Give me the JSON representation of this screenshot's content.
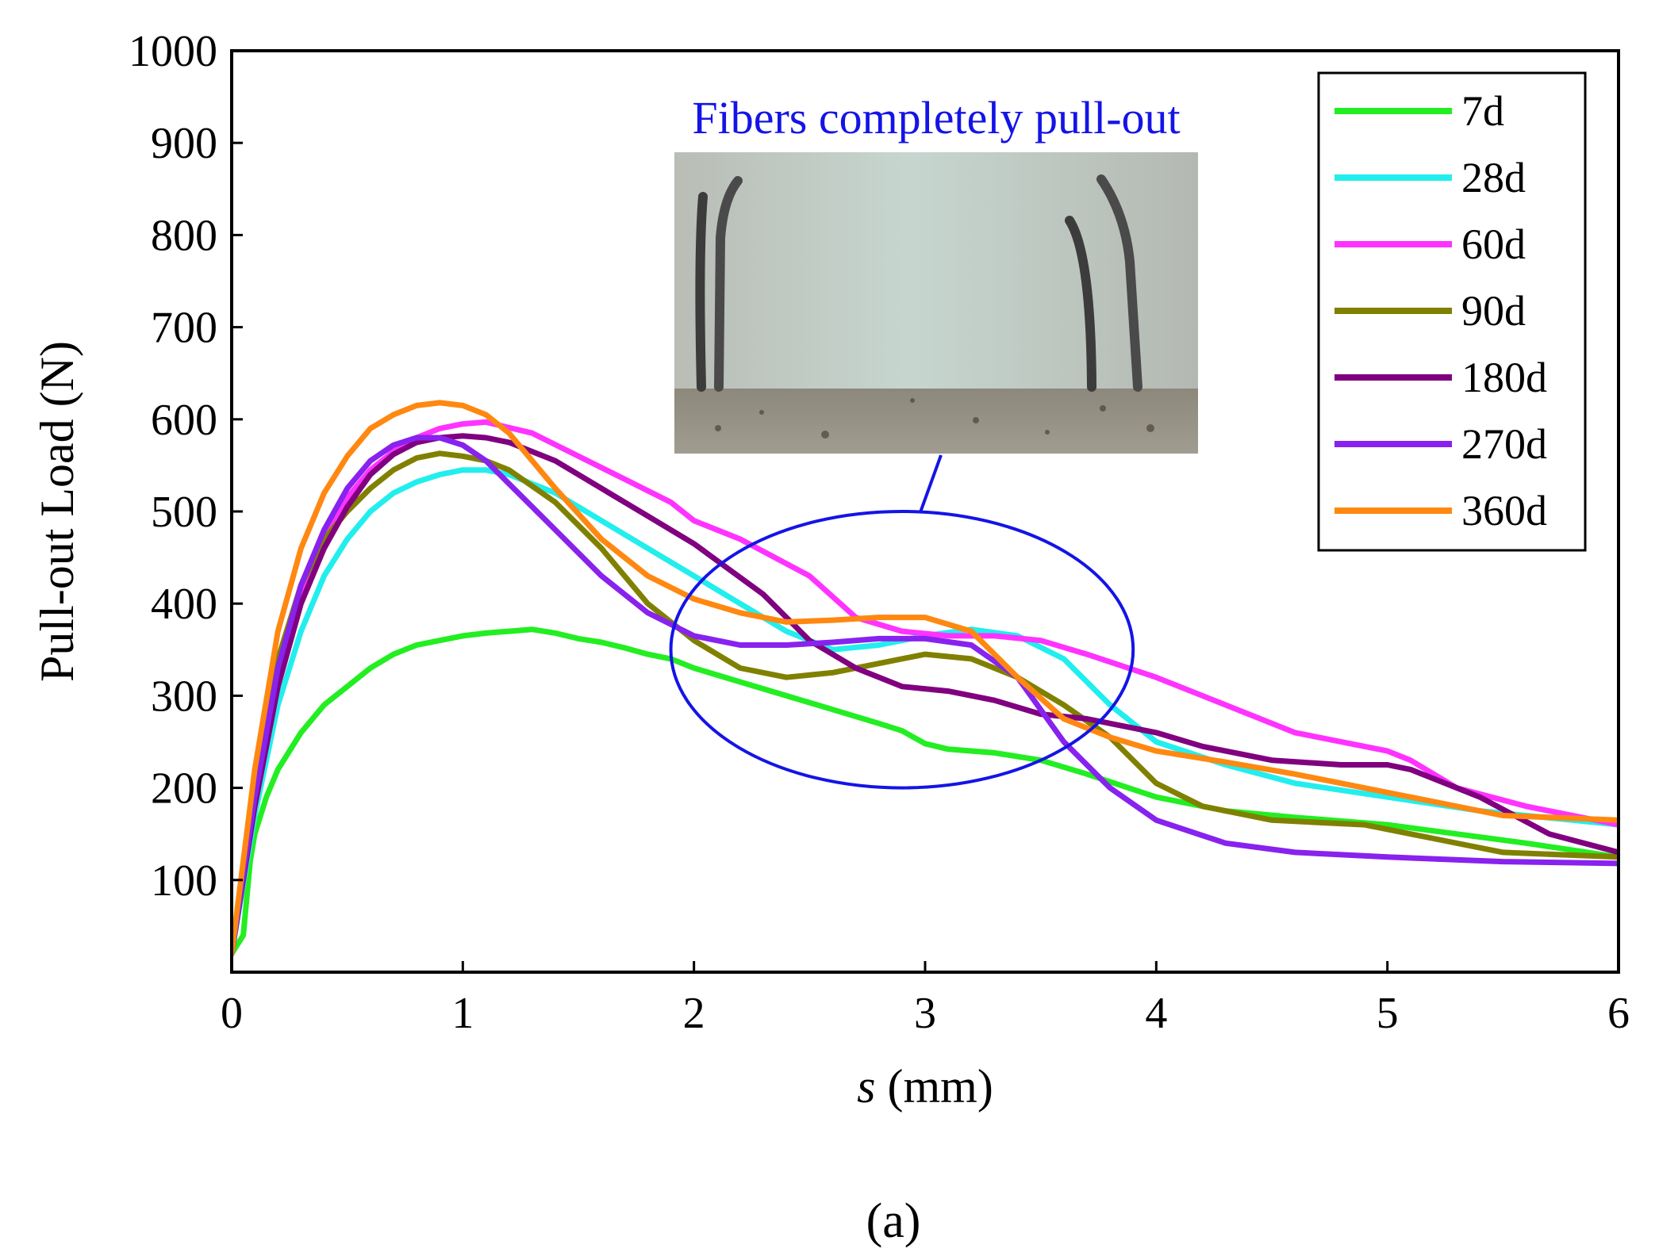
{
  "chart_data": {
    "type": "line",
    "title": "",
    "xlabel_var": "s",
    "xlabel_unit": " (mm)",
    "ylabel": "Pull-out Load (N)",
    "xlim": [
      0,
      6
    ],
    "ylim": [
      0,
      1000
    ],
    "xticks": [
      "0",
      "1",
      "2",
      "3",
      "4",
      "5",
      "6"
    ],
    "yticks": [
      "100",
      "200",
      "300",
      "400",
      "500",
      "600",
      "700",
      "800",
      "900",
      "1000"
    ],
    "legend_position": "top-right",
    "annotation": "Fibers completely pull-out",
    "annotation_ellipse_center": [
      2.9,
      350
    ],
    "annotation_ellipse_radii": [
      1.0,
      150
    ],
    "photo_description_icon": "photo-icon",
    "series": [
      {
        "name": "7d",
        "color": "#22ee22",
        "x": [
          0,
          0.05,
          0.08,
          0.1,
          0.15,
          0.2,
          0.3,
          0.4,
          0.5,
          0.6,
          0.7,
          0.8,
          0.9,
          1.0,
          1.1,
          1.2,
          1.3,
          1.4,
          1.5,
          1.6,
          1.7,
          1.8,
          1.9,
          2.0,
          2.2,
          2.4,
          2.6,
          2.8,
          2.9,
          3.0,
          3.1,
          3.3,
          3.5,
          3.7,
          4.0,
          4.3,
          4.6,
          5.0,
          5.3,
          5.6,
          6.0
        ],
        "y": [
          20,
          40,
          120,
          150,
          190,
          220,
          260,
          290,
          310,
          330,
          345,
          355,
          360,
          365,
          368,
          370,
          372,
          368,
          362,
          358,
          352,
          345,
          340,
          330,
          315,
          300,
          285,
          270,
          262,
          248,
          242,
          238,
          230,
          215,
          190,
          175,
          168,
          160,
          150,
          140,
          125
        ]
      },
      {
        "name": "28d",
        "color": "#22eeee",
        "x": [
          0,
          0.1,
          0.2,
          0.3,
          0.4,
          0.5,
          0.6,
          0.7,
          0.8,
          0.9,
          1.0,
          1.1,
          1.2,
          1.4,
          1.6,
          1.8,
          2.0,
          2.2,
          2.4,
          2.6,
          2.8,
          3.0,
          3.2,
          3.4,
          3.6,
          3.8,
          4.0,
          4.3,
          4.6,
          5.0,
          5.4,
          5.8,
          6.0
        ],
        "y": [
          20,
          170,
          290,
          370,
          430,
          470,
          500,
          520,
          532,
          540,
          545,
          545,
          540,
          520,
          490,
          460,
          430,
          400,
          370,
          350,
          355,
          365,
          372,
          365,
          340,
          290,
          250,
          225,
          205,
          190,
          175,
          165,
          160
        ]
      },
      {
        "name": "60d",
        "color": "#ff33ff",
        "x": [
          0,
          0.1,
          0.2,
          0.3,
          0.4,
          0.5,
          0.6,
          0.7,
          0.8,
          0.9,
          1.0,
          1.1,
          1.3,
          1.5,
          1.7,
          1.9,
          2.0,
          2.2,
          2.5,
          2.7,
          2.9,
          3.1,
          3.3,
          3.5,
          3.7,
          4.0,
          4.3,
          4.6,
          5.0,
          5.1,
          5.3,
          5.6,
          6.0
        ],
        "y": [
          20,
          200,
          330,
          410,
          470,
          515,
          545,
          565,
          580,
          590,
          595,
          597,
          585,
          560,
          535,
          510,
          490,
          470,
          430,
          385,
          370,
          365,
          365,
          360,
          345,
          320,
          290,
          260,
          240,
          230,
          200,
          180,
          160
        ]
      },
      {
        "name": "90d",
        "color": "#808000",
        "x": [
          0,
          0.1,
          0.2,
          0.3,
          0.4,
          0.5,
          0.6,
          0.7,
          0.8,
          0.9,
          1.0,
          1.1,
          1.2,
          1.4,
          1.6,
          1.8,
          2.0,
          2.2,
          2.4,
          2.6,
          2.8,
          3.0,
          3.2,
          3.4,
          3.6,
          3.8,
          4.0,
          4.2,
          4.5,
          4.9,
          5.2,
          5.5,
          6.0
        ],
        "y": [
          20,
          210,
          340,
          420,
          470,
          500,
          525,
          545,
          558,
          563,
          560,
          555,
          545,
          510,
          460,
          400,
          360,
          330,
          320,
          325,
          335,
          345,
          340,
          320,
          290,
          255,
          205,
          180,
          165,
          160,
          145,
          130,
          125
        ]
      },
      {
        "name": "180d",
        "color": "#800080",
        "x": [
          0,
          0.1,
          0.2,
          0.3,
          0.4,
          0.5,
          0.6,
          0.7,
          0.8,
          0.9,
          1.0,
          1.1,
          1.2,
          1.4,
          1.6,
          1.8,
          2.0,
          2.3,
          2.5,
          2.7,
          2.9,
          3.1,
          3.3,
          3.5,
          3.7,
          4.0,
          4.2,
          4.5,
          4.8,
          5.0,
          5.1,
          5.4,
          5.7,
          6.0
        ],
        "y": [
          20,
          180,
          310,
          400,
          460,
          505,
          540,
          562,
          575,
          580,
          582,
          580,
          575,
          555,
          525,
          495,
          465,
          410,
          360,
          330,
          310,
          305,
          295,
          280,
          275,
          260,
          245,
          230,
          225,
          225,
          220,
          190,
          150,
          130
        ]
      },
      {
        "name": "270d",
        "color": "#8822ee",
        "x": [
          0,
          0.1,
          0.2,
          0.3,
          0.4,
          0.5,
          0.6,
          0.7,
          0.8,
          0.9,
          1.0,
          1.1,
          1.2,
          1.4,
          1.6,
          1.8,
          2.0,
          2.2,
          2.4,
          2.6,
          2.8,
          3.0,
          3.2,
          3.4,
          3.6,
          3.8,
          4.0,
          4.3,
          4.6,
          5.0,
          5.5,
          6.0
        ],
        "y": [
          20,
          190,
          330,
          420,
          480,
          525,
          555,
          572,
          580,
          580,
          572,
          555,
          530,
          480,
          430,
          390,
          365,
          355,
          355,
          358,
          362,
          362,
          355,
          320,
          250,
          200,
          165,
          140,
          130,
          125,
          120,
          118
        ]
      },
      {
        "name": "360d",
        "color": "#ff8811",
        "x": [
          0,
          0.1,
          0.2,
          0.3,
          0.4,
          0.5,
          0.6,
          0.7,
          0.8,
          0.9,
          1.0,
          1.1,
          1.2,
          1.4,
          1.6,
          1.8,
          2.0,
          2.2,
          2.4,
          2.6,
          2.8,
          3.0,
          3.2,
          3.4,
          3.6,
          3.8,
          4.0,
          4.3,
          4.6,
          5.0,
          5.5,
          6.0
        ],
        "y": [
          20,
          220,
          370,
          460,
          520,
          560,
          590,
          605,
          615,
          618,
          615,
          605,
          585,
          525,
          470,
          430,
          405,
          390,
          380,
          382,
          385,
          385,
          370,
          320,
          275,
          255,
          240,
          228,
          215,
          195,
          170,
          165
        ]
      }
    ]
  },
  "panel_label": "(a)"
}
